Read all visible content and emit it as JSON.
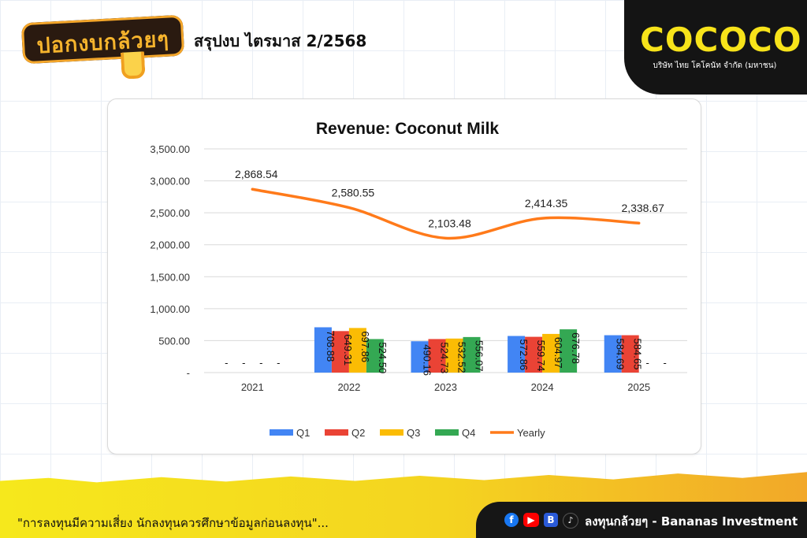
{
  "header": {
    "logo_text": "ปอกงบกล้วยๆ",
    "page_title": "สรุปงบ  ไตรมาส 2/2568",
    "brand_name": "COCOCO",
    "brand_subtitle": "บริษัท ไทย โคโคนัท จำกัด (มหาชน)"
  },
  "colors": {
    "q1": "#4285f4",
    "q2": "#ea4335",
    "q3": "#fbbc04",
    "q4": "#34a853",
    "yearly": "#ff7a1a"
  },
  "chart_data": {
    "type": "bar",
    "title": "Revenue: Coconut Milk",
    "xlabel": "",
    "ylabel": "",
    "ylim": [
      0,
      3500
    ],
    "y_ticks": [
      "-",
      "500.00",
      "1,000.00",
      "1,500.00",
      "2,000.00",
      "2,500.00",
      "3,000.00",
      "3,500.00"
    ],
    "categories": [
      "2021",
      "2022",
      "2023",
      "2024",
      "2025"
    ],
    "series": [
      {
        "name": "Q1",
        "values": [
          null,
          708.88,
          490.16,
          572.86,
          584.69
        ],
        "labels": [
          "-",
          "708.88",
          "490.16",
          "572.86",
          "584.69"
        ]
      },
      {
        "name": "Q2",
        "values": [
          null,
          649.31,
          524.73,
          559.74,
          584.65
        ],
        "labels": [
          "-",
          "649.31",
          "524.73",
          "559.74",
          "584.65"
        ]
      },
      {
        "name": "Q3",
        "values": [
          null,
          697.86,
          532.52,
          604.97,
          null
        ],
        "labels": [
          "-",
          "697.86",
          "532.52",
          "604.97",
          "-"
        ]
      },
      {
        "name": "Q4",
        "values": [
          null,
          524.5,
          556.07,
          676.78,
          null
        ],
        "labels": [
          "-",
          "524.50",
          "556.07",
          "676.78",
          "-"
        ]
      },
      {
        "name": "Yearly",
        "type": "line",
        "values": [
          2868.54,
          2580.55,
          2103.48,
          2414.35,
          2338.67
        ],
        "labels": [
          "2,868.54",
          "2,580.55",
          "2,103.48",
          "2,414.35",
          "2,338.67"
        ]
      }
    ],
    "legend_position": "bottom",
    "grid": true
  },
  "footer": {
    "disclaimer": "\"การลงทุนมีความเสี่ยง  นักลงทุนควรศึกษาข้อมูลก่อนลงทุน\"...",
    "social_label": "ลงทุนกล้วยๆ - Bananas Investment",
    "social_icons": [
      "facebook-icon",
      "youtube-icon",
      "blockdit-icon",
      "tiktok-icon"
    ]
  }
}
